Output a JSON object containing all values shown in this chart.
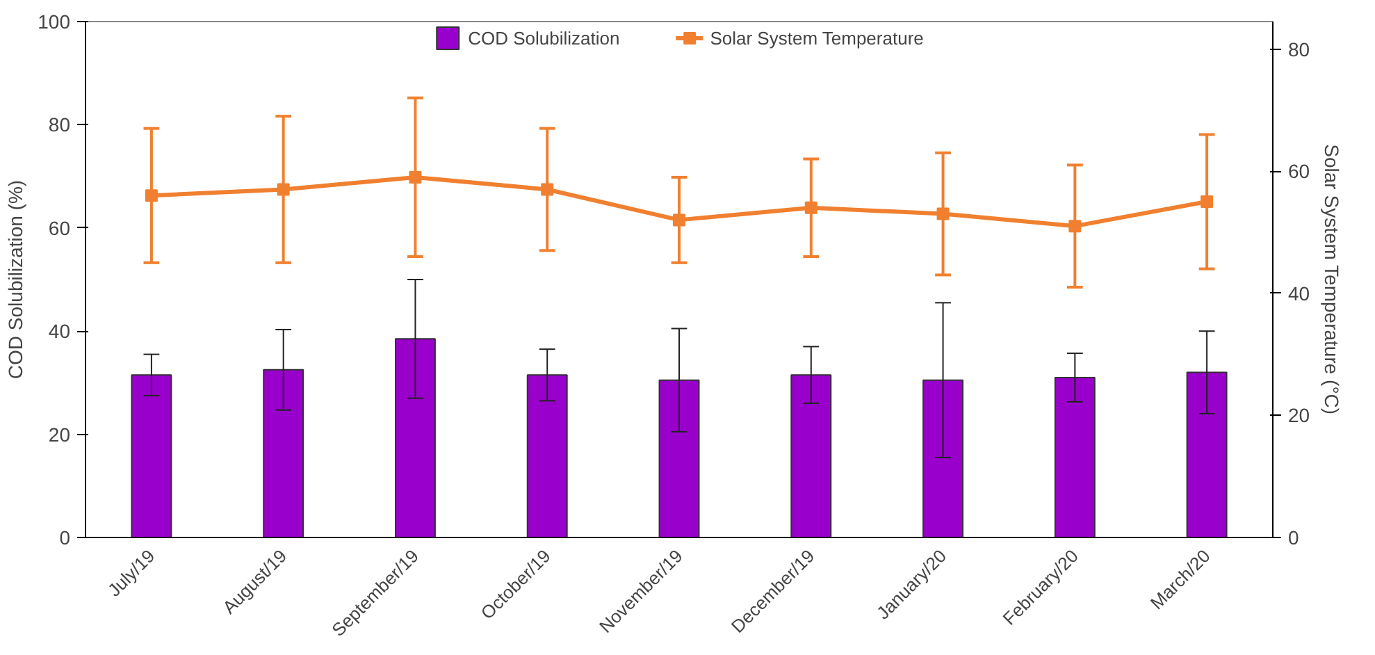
{
  "chart_data": {
    "type": "bar",
    "categories": [
      "July/19",
      "August/19",
      "September/19",
      "October/19",
      "November/19",
      "December/19",
      "January/20",
      "February/20",
      "March/20"
    ],
    "ylabel": "COD Solubilization (%)",
    "y2label": "Solar System Temperature (°C)",
    "ylim": [
      0,
      100
    ],
    "yticks": [
      0,
      20,
      40,
      60,
      80,
      100
    ],
    "y2lim": [
      0,
      84.5
    ],
    "y2ticks": [
      0,
      20,
      40,
      60,
      80
    ],
    "series": [
      {
        "name": "COD Solubilization",
        "color": "#9900cc",
        "values": [
          31.5,
          32.5,
          38.5,
          31.5,
          30.5,
          31.5,
          30.5,
          31,
          32
        ],
        "errors": [
          4,
          7.8,
          11.5,
          5,
          10,
          5.5,
          15,
          4.7,
          8
        ]
      },
      {
        "name": "Solar System Temperature",
        "type": "line",
        "axis": "y2",
        "color": "#f08030",
        "marker": "square",
        "values": [
          56,
          57,
          59,
          57,
          52,
          54,
          53,
          51,
          55
        ],
        "errors": [
          11,
          12,
          13,
          10,
          7,
          8,
          10,
          10,
          11
        ]
      }
    ],
    "legend": "top",
    "grid": false
  }
}
